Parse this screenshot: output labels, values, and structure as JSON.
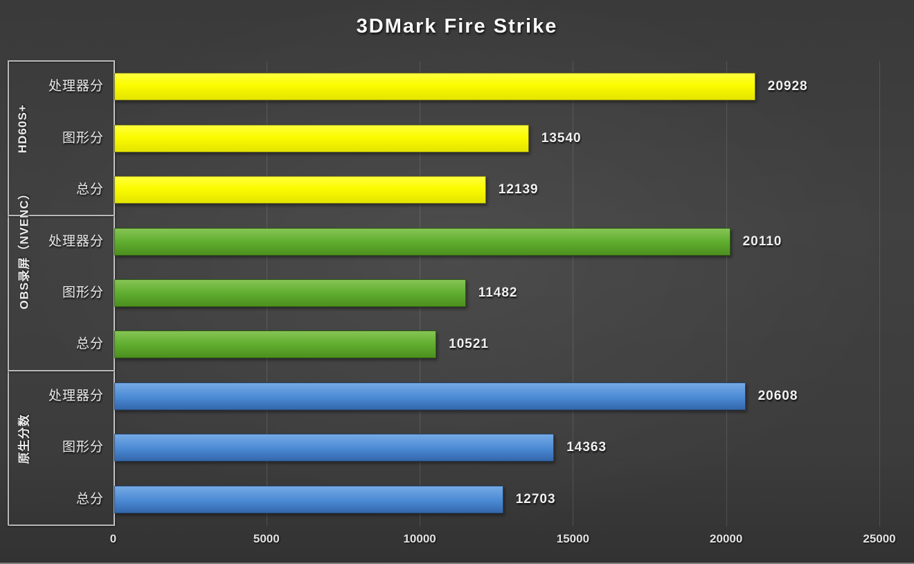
{
  "title": "3DMark Fire Strike",
  "colors": {
    "background": "#3e3e3e",
    "grid": "#5c5c5c",
    "text": "#f1f1f1",
    "panel_border": "#b9b9b9",
    "series_yellow": "#fbfb00",
    "series_green": "#60ae2f",
    "series_blue": "#4a89d4"
  },
  "chart_data": {
    "type": "bar",
    "orientation": "horizontal",
    "title": "3DMark Fire Strike",
    "xlabel": "",
    "ylabel": "",
    "xlim": [
      0,
      25000
    ],
    "x_ticks": [
      "0",
      "5000",
      "10000",
      "15000",
      "20000",
      "25000"
    ],
    "x_tick_values": [
      0,
      5000,
      10000,
      15000,
      20000,
      25000
    ],
    "grid": "vertical-only",
    "legend": "none",
    "value_labels": "outside-end",
    "groups": [
      {
        "name": "HD60S+",
        "color": "#fbfb00",
        "bars": [
          {
            "label": "处理器分",
            "value": 20928
          },
          {
            "label": "图形分",
            "value": 13540
          },
          {
            "label": "总分",
            "value": 12139
          }
        ]
      },
      {
        "name": "OBS录屏（NVENC）",
        "color": "#60ae2f",
        "bars": [
          {
            "label": "处理器分",
            "value": 20110
          },
          {
            "label": "图形分",
            "value": 11482
          },
          {
            "label": "总分",
            "value": 10521
          }
        ]
      },
      {
        "name": "原生分数",
        "color": "#4a89d4",
        "bars": [
          {
            "label": "处理器分",
            "value": 20608
          },
          {
            "label": "图形分",
            "value": 14363
          },
          {
            "label": "总分",
            "value": 12703
          }
        ]
      }
    ]
  }
}
